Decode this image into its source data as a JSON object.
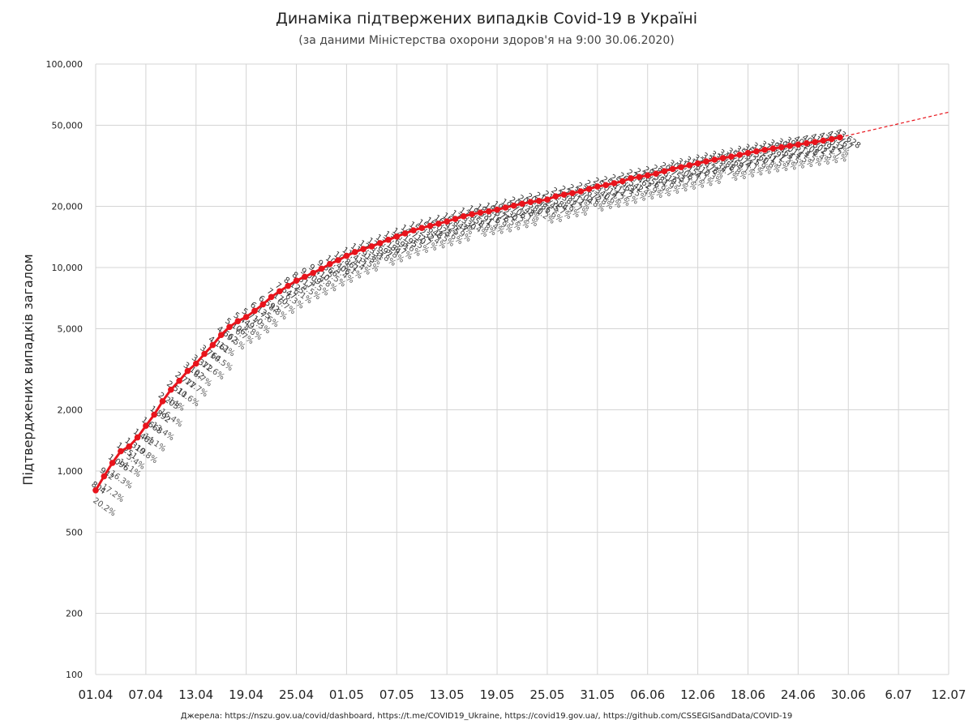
{
  "title": "Динаміка підтвержених випадків Covid-19 в Україні",
  "subtitle": "(за даними Міністерства охорони здоров'я на 9:00 30.06.2020)",
  "footer": "Джерела: https://nszu.gov.ua/covid/dashboard, https://t.me/COVID19_Ukraine, https://covid19.gov.ua/, https://github.com/CSSEGISandData/COVID-19",
  "chart_data": {
    "type": "line",
    "title": "Динаміка підтвержених випадків Covid-19 в Україні",
    "subtitle": "(за даними Міністерства охорони здоров'я на 9:00 30.06.2020)",
    "xlabel": "",
    "ylabel": "Підтверджених випадків загалом",
    "yscale": "log",
    "ylim": [
      100,
      100000
    ],
    "y_ticks": [
      100,
      200,
      500,
      1000,
      2000,
      5000,
      10000,
      20000,
      50000,
      100000
    ],
    "y_tick_labels": [
      "100",
      "200",
      "500",
      "1,000",
      "2,000",
      "5,000",
      "10,000",
      "20,000",
      "50,000",
      "100,000"
    ],
    "x_tick_labels": [
      "01.04",
      "07.04",
      "13.04",
      "19.04",
      "25.04",
      "01.05",
      "07.05",
      "13.05",
      "19.05",
      "25.05",
      "31.05",
      "06.06",
      "12.06",
      "18.06",
      "24.06",
      "30.06",
      "6.07",
      "12.07"
    ],
    "x_range_days": [
      0,
      102
    ],
    "grid": true,
    "series_color": "#e8141c",
    "trend_color": "#e8141c",
    "series": [
      {
        "x_days": [
          0,
          1,
          2,
          3,
          4,
          5,
          6,
          7,
          8,
          9,
          10,
          11,
          12,
          13,
          14,
          15,
          16,
          17,
          18,
          19,
          20,
          21,
          22,
          23,
          24,
          25,
          26,
          27,
          28,
          29,
          30,
          31,
          32,
          33,
          34,
          35,
          36,
          37,
          38,
          39,
          40,
          41,
          42,
          43,
          44,
          45,
          46,
          47,
          48,
          49,
          50,
          51,
          52,
          53,
          54,
          55,
          56,
          57,
          58,
          59,
          60,
          61,
          62,
          63,
          64,
          65,
          66,
          67,
          68,
          69,
          70,
          71,
          72,
          73,
          74,
          75,
          76,
          77,
          78,
          79,
          80,
          81,
          82,
          83,
          84,
          85,
          86,
          87,
          88,
          89
        ],
        "values": [
          804,
          942,
          1096,
          1251,
          1319,
          1462,
          1668,
          1892,
          2203,
          2511,
          2777,
          3102,
          3372,
          3764,
          4161,
          4662,
          5106,
          5449,
          5710,
          6125,
          6592,
          7170,
          7647,
          8125,
          8617,
          9009,
          9410,
          9866,
          10406,
          10861,
          11411,
          11913,
          12331,
          12697,
          13184,
          13691,
          14195,
          14710,
          15232,
          15648,
          16023,
          16425,
          16847,
          17330,
          17858,
          18291,
          18616,
          18876,
          19230,
          19706,
          20148,
          20580,
          20986,
          21245,
          21584,
          22382,
          22811,
          23204,
          23672,
          24340,
          25014,
          25411,
          25964,
          26542,
          27462,
          27856,
          28381,
          28919,
          29753,
          30506,
          31154,
          31810,
          32476,
          33234,
          33888,
          34469,
          35074,
          35825,
          36560,
          37241,
          37897,
          38464,
          39014,
          39614,
          40208,
          40802,
          41393,
          42032,
          42767,
          43628
        ]
      }
    ],
    "trend_line": {
      "from_day": 89,
      "to_day": 102,
      "start_value": 43628,
      "end_value": 58000
    },
    "point_labels": [
      "804",
      "942",
      "1,096",
      "1,251",
      "1,319",
      "1,462",
      "1,668",
      "1,892",
      "2,203",
      "2,511",
      "2,777",
      "3,102",
      "3,372",
      "3,764",
      "4,161",
      "4,662",
      "5,106",
      "5,449",
      "5,710",
      "6,125",
      "6,592",
      "7,170",
      "7,647",
      "8,125",
      "8,617",
      "9,009",
      "9,410",
      "9,866",
      "10,406",
      "10,861",
      "11,411",
      "11,913",
      "12,331",
      "12,697",
      "13,184",
      "13,691",
      "14,195",
      "14,710",
      "15,232",
      "15,648",
      "16,023",
      "16,425",
      "16,847",
      "17,330",
      "17,858",
      "18,291",
      "18,616",
      "18,876",
      "19,230",
      "19,706",
      "20,148",
      "20,580",
      "20,986",
      "21,245",
      "21,584",
      "22,382",
      "22,811",
      "23,204",
      "23,672",
      "24,340",
      "25,014",
      "25,411",
      "25,964",
      "26,542",
      "27,462",
      "27,856",
      "28,381",
      "28,919",
      "29,753",
      "30,506",
      "31,154",
      "31,810",
      "32,476",
      "33,234",
      "33,888",
      "34,469",
      "35,074",
      "35,825",
      "36,560",
      "37,241",
      "37,897",
      "38,464",
      "39,014",
      "39,614",
      "40,208",
      "40,802",
      "41,393",
      "42,032",
      "42,767",
      "43,628"
    ],
    "pct_labels": [
      "20.2%",
      "17.2%",
      "16.3%",
      "14.1%",
      "5.4%",
      "10.8%",
      "14.1%",
      "13.4%",
      "16.4%",
      "14%",
      "10.6%",
      "11.7%",
      "8.7%",
      "11.6%",
      "10.5%",
      "12%",
      "9.5%",
      "6.7%",
      "4.8%",
      "7.3%",
      "7.6%",
      "8.8%",
      "6.7%",
      "6.3%",
      "6.1%",
      "4.5%",
      "4.5%",
      "4.8%",
      "5.5%",
      "4.4%",
      "5.1%",
      "4.4%",
      "3.5%",
      "3%",
      "3.8%",
      "3.8%",
      "3.7%",
      "3.6%",
      "3.5%",
      "2.7%",
      "2.4%",
      "2.5%",
      "2.6%",
      "2.9%",
      "3%",
      "2.4%",
      "1.8%",
      "1.4%",
      "1.9%",
      "2.5%",
      "2.2%",
      "2.1%",
      "2%",
      "1.2%",
      "1.6%",
      "3.7%",
      "1.9%",
      "1.7%",
      "2%",
      "2.8%",
      "2.8%",
      "1.6%",
      "2.2%",
      "2.2%",
      "3.5%",
      "1.4%",
      "1.9%",
      "1.9%",
      "2.9%",
      "2.5%",
      "2.1%",
      "2.1%",
      "2.1%",
      "2.3%",
      "2%",
      "1.7%",
      "1.8%",
      "2.1%",
      "2.1%",
      "1.9%",
      "1.8%",
      "1.5%",
      "1.4%",
      "1.5%",
      "1.5%",
      "1.5%",
      "1.4%",
      "1.5%",
      "1.7%",
      "2%"
    ]
  }
}
